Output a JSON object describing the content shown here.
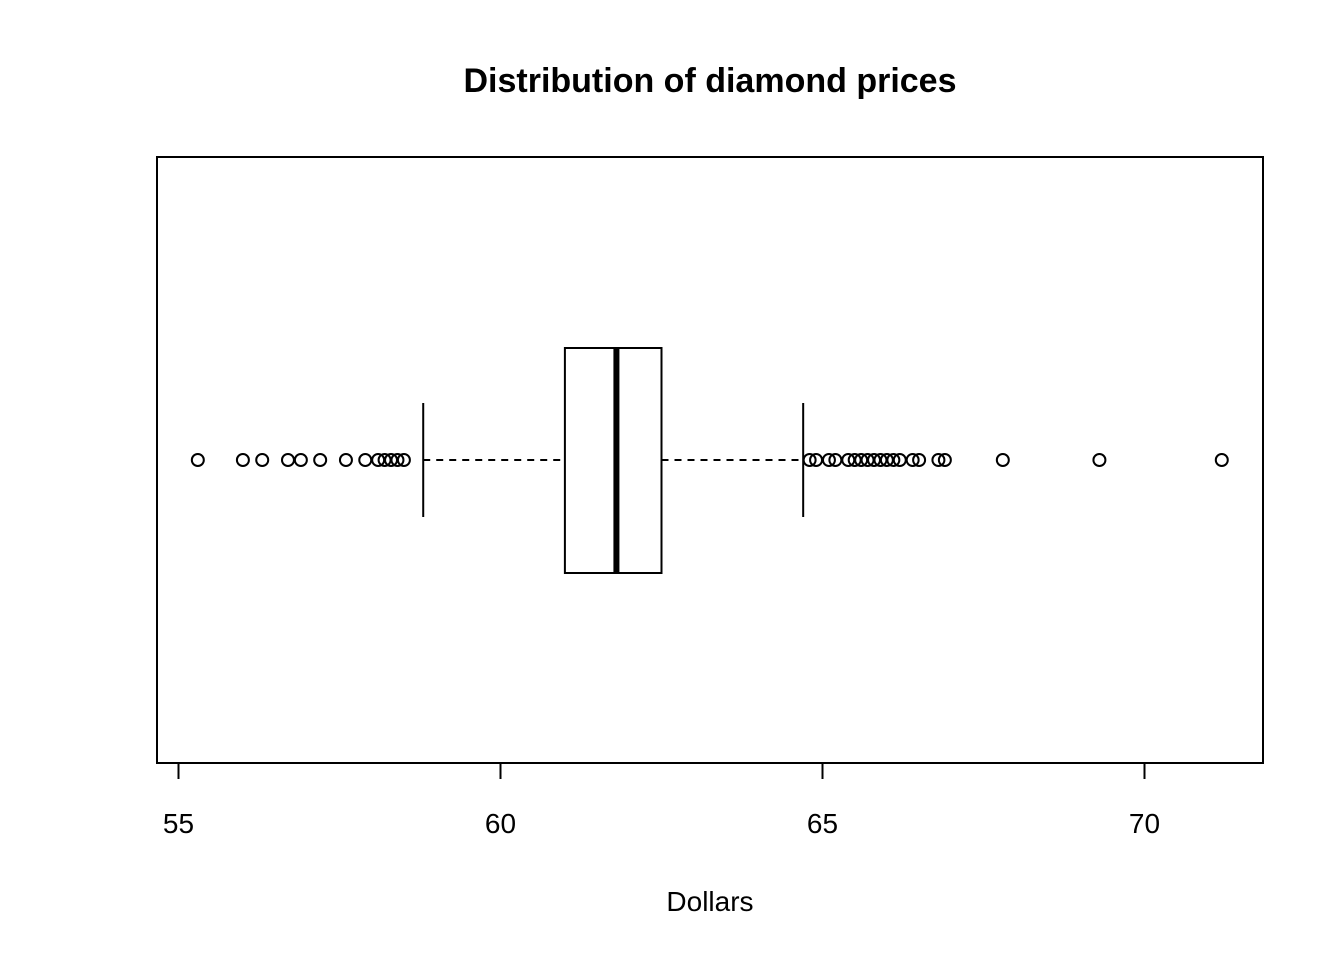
{
  "chart_data": {
    "type": "boxplot",
    "orientation": "horizontal",
    "title": "Distribution of diamond prices",
    "xlabel": "Dollars",
    "ylabel": "",
    "xlim": [
      54.7,
      71.85
    ],
    "x_ticks": [
      55,
      60,
      65,
      70
    ],
    "x_tick_labels": [
      "55",
      "60",
      "65",
      "70"
    ],
    "grid": false,
    "legend": "none",
    "box": {
      "lower_whisker": 58.8,
      "q1": 61.0,
      "median": 61.8,
      "q3": 62.5,
      "upper_whisker": 64.7
    },
    "outliers": [
      55.3,
      56.0,
      56.3,
      56.7,
      56.9,
      57.2,
      57.6,
      57.9,
      58.1,
      58.2,
      58.3,
      58.4,
      58.5,
      64.8,
      64.9,
      65.1,
      65.2,
      65.4,
      65.5,
      65.6,
      65.7,
      65.8,
      65.9,
      66.0,
      66.1,
      66.2,
      66.4,
      66.5,
      66.8,
      66.9,
      67.8,
      69.3,
      71.2
    ],
    "colors": {
      "line": "#000000",
      "background": "#ffffff"
    }
  }
}
